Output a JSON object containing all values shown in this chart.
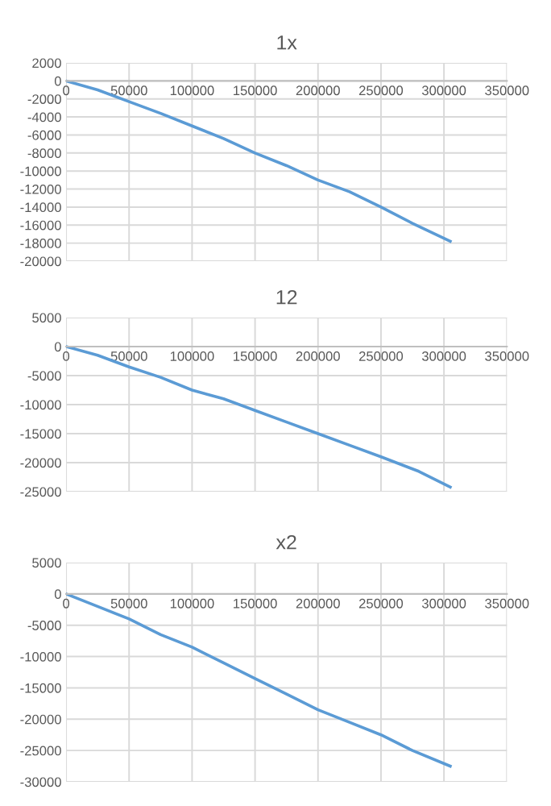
{
  "chart_data": [
    {
      "type": "line",
      "title": "1x",
      "x": [
        0,
        25000,
        50000,
        75000,
        100000,
        125000,
        150000,
        175000,
        200000,
        225000,
        250000,
        275000,
        305000
      ],
      "series": [
        {
          "color": "#5b9bd5",
          "values": [
            0,
            -1000,
            -2300,
            -3600,
            -5000,
            -6400,
            -8000,
            -9400,
            -11000,
            -12300,
            -14000,
            -15800,
            -17800
          ]
        }
      ],
      "xlim": [
        0,
        350000
      ],
      "xticks": [
        0,
        50000,
        100000,
        150000,
        200000,
        250000,
        300000,
        350000
      ],
      "ylim": [
        -20000,
        2000
      ],
      "yticks": [
        -20000,
        -18000,
        -16000,
        -14000,
        -12000,
        -10000,
        -8000,
        -6000,
        -4000,
        -2000,
        0,
        2000
      ],
      "grid": true,
      "legend": false,
      "marker": "none",
      "line_style": "solid"
    },
    {
      "type": "line",
      "title": "12",
      "x": [
        0,
        25000,
        50000,
        75000,
        100000,
        125000,
        150000,
        175000,
        200000,
        225000,
        250000,
        280000,
        305000
      ],
      "series": [
        {
          "color": "#5b9bd5",
          "values": [
            0,
            -1500,
            -3500,
            -5300,
            -7500,
            -9000,
            -11000,
            -13000,
            -15000,
            -17000,
            -19000,
            -21500,
            -24200
          ]
        }
      ],
      "xlim": [
        0,
        350000
      ],
      "xticks": [
        0,
        50000,
        100000,
        150000,
        200000,
        250000,
        300000,
        350000
      ],
      "ylim": [
        -25000,
        5000
      ],
      "yticks": [
        -25000,
        -20000,
        -15000,
        -10000,
        -5000,
        0,
        5000
      ],
      "grid": true,
      "legend": false,
      "marker": "none",
      "line_style": "solid"
    },
    {
      "type": "line",
      "title": "x2",
      "x": [
        0,
        25000,
        50000,
        75000,
        100000,
        125000,
        150000,
        175000,
        200000,
        225000,
        250000,
        275000,
        305000
      ],
      "series": [
        {
          "color": "#5b9bd5",
          "values": [
            0,
            -2000,
            -4000,
            -6500,
            -8500,
            -11000,
            -13500,
            -16000,
            -18500,
            -20500,
            -22500,
            -25000,
            -27500
          ]
        }
      ],
      "xlim": [
        0,
        350000
      ],
      "xticks": [
        0,
        50000,
        100000,
        150000,
        200000,
        250000,
        300000,
        350000
      ],
      "ylim": [
        -30000,
        5000
      ],
      "yticks": [
        -30000,
        -25000,
        -20000,
        -15000,
        -10000,
        -5000,
        0,
        5000
      ],
      "grid": true,
      "legend": false,
      "marker": "none",
      "line_style": "solid"
    }
  ]
}
